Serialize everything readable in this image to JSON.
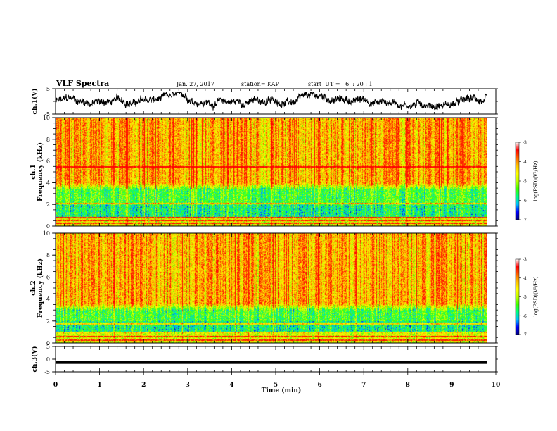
{
  "header": {
    "title": "VLF Spectra",
    "date": "Jan. 27, 2017",
    "station": "station= KAP",
    "start_ut": "start  UT =   6  : 20 : 1"
  },
  "chart_data": [
    {
      "type": "line",
      "panel": "ch1-waveform",
      "ylabel": "ch.1(V)",
      "ylim": [
        -5,
        5
      ],
      "yticks": [
        "5",
        "-5"
      ],
      "xlim": [
        0,
        10
      ],
      "x_end": 9.8,
      "description_values": {
        "center": 0.0,
        "amplitude_approx": 1.8
      }
    },
    {
      "type": "heatmap",
      "panel": "ch1-spectrogram",
      "ylabel": "ch.1\nFrequency  (kHz)",
      "ylabel_top": "ch.1",
      "ylabel_bottom": "Frequency  (kHz)",
      "ylim": [
        0,
        10
      ],
      "yticks": [
        "0",
        "2",
        "4",
        "6",
        "8",
        "10"
      ],
      "xlim": [
        0,
        10
      ],
      "x_end": 9.8,
      "bands_khz": {
        "low_noise_top": 3.4,
        "narrowband_lines": [
          0.3,
          0.55,
          0.8,
          2.1,
          5.5
        ]
      },
      "colorbar": {
        "label": "log(PSD)(V²/Hz)",
        "range": [
          -7,
          -3
        ],
        "ticks": [
          "-3",
          "-4",
          "-5",
          "-6",
          "-7"
        ]
      }
    },
    {
      "type": "heatmap",
      "panel": "ch2-spectrogram",
      "ylabel_top": "ch.2",
      "ylabel_bottom": "Frequency  (kHz)",
      "ylim": [
        0,
        10
      ],
      "yticks": [
        "0",
        "2",
        "4",
        "6",
        "8",
        "10"
      ],
      "xlim": [
        0,
        10
      ],
      "x_end": 9.8,
      "bands_khz": {
        "low_noise_top": 3.0,
        "narrowband_lines": [
          0.3,
          0.6,
          1.0,
          1.8
        ]
      },
      "colorbar": {
        "label": "log(PSD)(V²/Hz)",
        "range": [
          -7,
          -3
        ],
        "ticks": [
          "-3",
          "-4",
          "-5",
          "-6",
          "-7"
        ]
      }
    },
    {
      "type": "line",
      "panel": "ch3-waveform",
      "ylabel": "ch.3(V)",
      "ylim": [
        -5,
        5
      ],
      "yticks": [
        "5",
        "0",
        "-5"
      ],
      "xlim": [
        0,
        10
      ],
      "x_end": 9.8,
      "xlabel": "Time  (min)",
      "xticks": [
        "0",
        "1",
        "2",
        "3",
        "4",
        "5",
        "6",
        "7",
        "8",
        "9",
        "10"
      ],
      "constant_value": -1.3
    }
  ],
  "colors": {
    "colormap": [
      "#000080",
      "#0000ff",
      "#00c0ff",
      "#00ff80",
      "#40ff00",
      "#c0ff00",
      "#ffff00",
      "#ffc000",
      "#ff6000",
      "#ff0000",
      "#ffffff"
    ],
    "trace": "#000000"
  }
}
